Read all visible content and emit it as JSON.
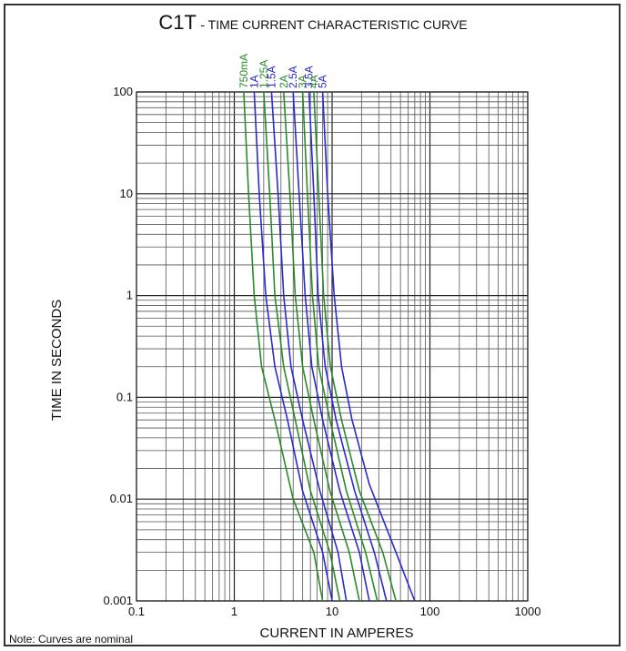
{
  "title_model": "C1T",
  "title_text": "- TIME CURRENT CHARACTERISTIC CURVE",
  "note": "Note: Curves are nominal",
  "chart_data": {
    "type": "line",
    "title": "C1T - TIME CURRENT CHARACTERISTIC CURVE",
    "xlabel": "CURRENT IN AMPERES",
    "ylabel": "TIME IN SECONDS",
    "x_scale": "log",
    "y_scale": "log",
    "xlim": [
      0.1,
      1000
    ],
    "ylim": [
      0.001,
      100
    ],
    "grid": true,
    "x_ticks": [
      "0.1",
      "1",
      "10",
      "100",
      "1000"
    ],
    "y_ticks": [
      "0.001",
      "0.01",
      "0.1",
      "1",
      "10",
      "100"
    ],
    "legend_placement": "top (labels above curves, rotated)",
    "colors": {
      "green": "#2a8a2a",
      "blue": "#2a2ad0"
    },
    "series": [
      {
        "name": "750mA",
        "color": "#2a8a2a",
        "x": [
          1.25,
          1.4,
          1.6,
          1.9,
          2.6,
          4.0,
          6.5,
          8.0
        ],
        "y": [
          100,
          10,
          1,
          0.2,
          0.06,
          0.01,
          0.003,
          0.001
        ]
      },
      {
        "name": "1A",
        "color": "#2a2ad0",
        "x": [
          1.6,
          1.8,
          2.1,
          2.6,
          3.5,
          5.0,
          8.0,
          10.0
        ],
        "y": [
          100,
          10,
          1,
          0.2,
          0.06,
          0.012,
          0.003,
          0.001
        ]
      },
      {
        "name": "1.25A",
        "color": "#2a8a2a",
        "x": [
          2.0,
          2.3,
          2.6,
          3.2,
          4.2,
          6.0,
          9.5,
          12.0
        ],
        "y": [
          100,
          10,
          1,
          0.2,
          0.06,
          0.012,
          0.003,
          0.001
        ]
      },
      {
        "name": "1.5A",
        "color": "#2a2ad0",
        "x": [
          2.4,
          2.8,
          3.2,
          3.8,
          5.0,
          7.5,
          11.5,
          14.0
        ],
        "y": [
          100,
          10,
          1,
          0.2,
          0.06,
          0.012,
          0.003,
          0.001
        ]
      },
      {
        "name": "2A",
        "color": "#2a8a2a",
        "x": [
          3.2,
          3.7,
          4.2,
          5.0,
          6.5,
          9.5,
          15.0,
          19.0
        ],
        "y": [
          100,
          10,
          1,
          0.2,
          0.06,
          0.012,
          0.003,
          0.001
        ]
      },
      {
        "name": "2.5A",
        "color": "#2a2ad0",
        "x": [
          4.0,
          4.6,
          5.3,
          6.2,
          8.0,
          12.0,
          19.0,
          24.0
        ],
        "y": [
          100,
          10,
          1,
          0.2,
          0.06,
          0.012,
          0.003,
          0.001
        ]
      },
      {
        "name": "3A",
        "color": "#2a8a2a",
        "x": [
          5.0,
          5.6,
          6.3,
          7.3,
          9.5,
          14.0,
          22.0,
          29.0
        ],
        "y": [
          100,
          10,
          1,
          0.2,
          0.06,
          0.012,
          0.003,
          0.001
        ]
      },
      {
        "name": "3.5A",
        "color": "#2a2ad0",
        "x": [
          5.8,
          6.5,
          7.2,
          8.5,
          11.0,
          17.0,
          27.0,
          36.0
        ],
        "y": [
          100,
          10,
          1,
          0.2,
          0.06,
          0.012,
          0.003,
          0.001
        ]
      },
      {
        "name": "4A",
        "color": "#2a8a2a",
        "x": [
          6.5,
          7.3,
          8.2,
          9.6,
          12.5,
          19.0,
          33.0,
          45.0
        ],
        "y": [
          100,
          10,
          1,
          0.2,
          0.06,
          0.012,
          0.003,
          0.001
        ]
      },
      {
        "name": "5A",
        "color": "#2a2ad0",
        "x": [
          8.0,
          9.0,
          10.5,
          12.5,
          16.0,
          24.0,
          45.0,
          70.0
        ],
        "y": [
          100,
          10,
          1,
          0.2,
          0.06,
          0.014,
          0.003,
          0.001
        ]
      }
    ]
  }
}
